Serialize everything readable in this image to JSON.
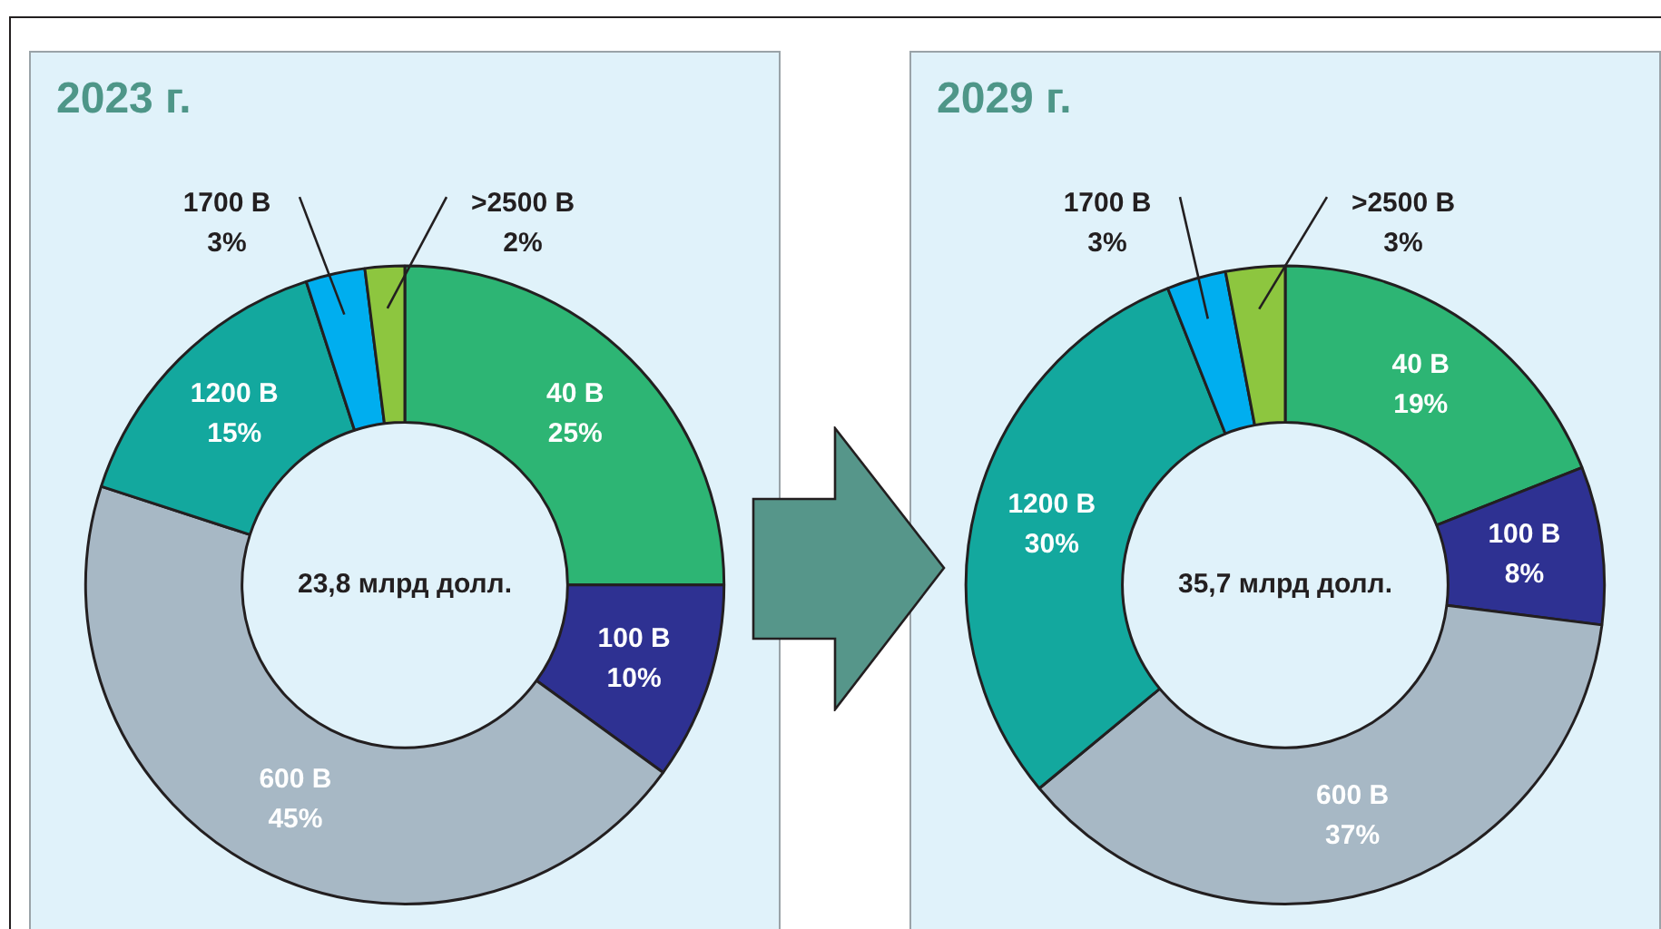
{
  "chart_data": [
    {
      "type": "donut",
      "title": "2023 г.",
      "categories": [
        "40 В",
        "100 В",
        "600 В",
        "1200 В",
        "1700 В",
        ">2500 В"
      ],
      "values": [
        25,
        10,
        45,
        15,
        3,
        2
      ],
      "value_labels": [
        "25%",
        "10%",
        "45%",
        "15%",
        "3%",
        "2%"
      ],
      "colors": [
        "#2db574",
        "#2e3192",
        "#a7b8c5",
        "#13a89e",
        "#00aeef",
        "#8dc63f"
      ],
      "annotations": [
        "23,8 млрд долл."
      ],
      "legend": false
    },
    {
      "type": "donut",
      "title": "2029 г.",
      "categories": [
        "40 В",
        "100 В",
        "600 В",
        "1200 В",
        "1700 В",
        ">2500 В"
      ],
      "values": [
        19,
        8,
        37,
        30,
        3,
        3
      ],
      "value_labels": [
        "19%",
        "8%",
        "37%",
        "30%",
        "3%",
        "3%"
      ],
      "colors": [
        "#2db574",
        "#2e3192",
        "#a7b8c5",
        "#13a89e",
        "#00aeef",
        "#8dc63f"
      ],
      "annotations": [
        "35,7 млрд долл."
      ],
      "legend": false
    }
  ]
}
